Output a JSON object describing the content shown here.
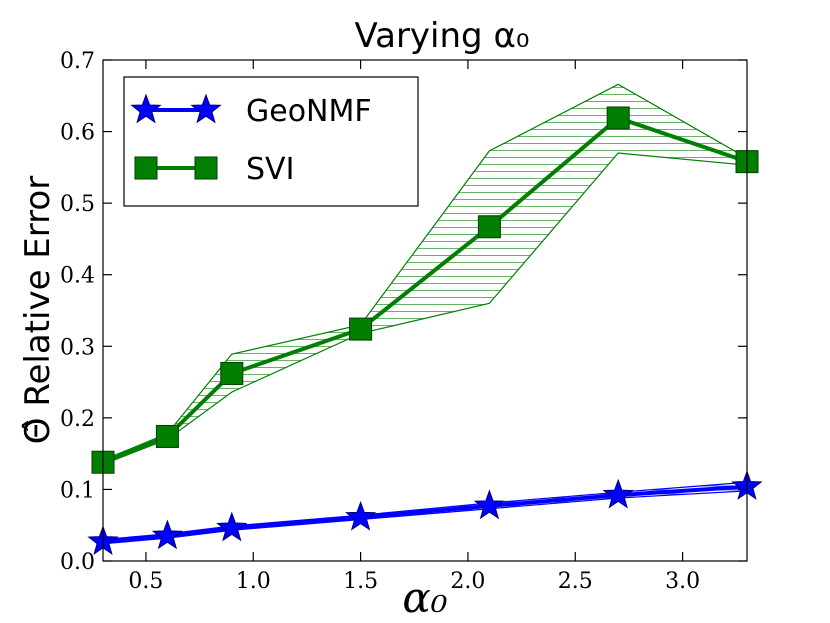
{
  "chart_data": {
    "type": "line",
    "title": "Varying α₀",
    "xlabel": "α₀",
    "ylabel": "Θ̂ Relative Error",
    "xlim": [
      0.3,
      3.3
    ],
    "ylim": [
      0.0,
      0.7
    ],
    "x_ticks": [
      "0.5",
      "1.0",
      "1.5",
      "2.0",
      "2.5",
      "3.0"
    ],
    "y_ticks": [
      "0.0",
      "0.1",
      "0.2",
      "0.3",
      "0.4",
      "0.5",
      "0.6",
      "0.7"
    ],
    "legend_position": "top-left",
    "grid": false,
    "series": [
      {
        "name": "GeoNMF",
        "color": "#0000ff",
        "marker": "star",
        "x": [
          0.3,
          0.6,
          0.9,
          1.5,
          2.1,
          2.7,
          3.3
        ],
        "y": [
          0.027,
          0.035,
          0.046,
          0.061,
          0.077,
          0.092,
          0.104
        ],
        "band_upper": [
          0.03,
          0.038,
          0.049,
          0.064,
          0.081,
          0.096,
          0.11
        ],
        "band_lower": [
          0.024,
          0.032,
          0.043,
          0.058,
          0.073,
          0.088,
          0.098
        ]
      },
      {
        "name": "SVI",
        "color": "#007f00",
        "marker": "square",
        "x": [
          0.3,
          0.6,
          0.9,
          1.5,
          2.1,
          2.7,
          3.3
        ],
        "y": [
          0.138,
          0.174,
          0.262,
          0.324,
          0.467,
          0.619,
          0.558
        ],
        "band_upper": [
          0.141,
          0.178,
          0.289,
          0.33,
          0.573,
          0.666,
          0.563
        ],
        "band_lower": [
          0.135,
          0.17,
          0.236,
          0.318,
          0.36,
          0.57,
          0.553
        ]
      }
    ]
  }
}
